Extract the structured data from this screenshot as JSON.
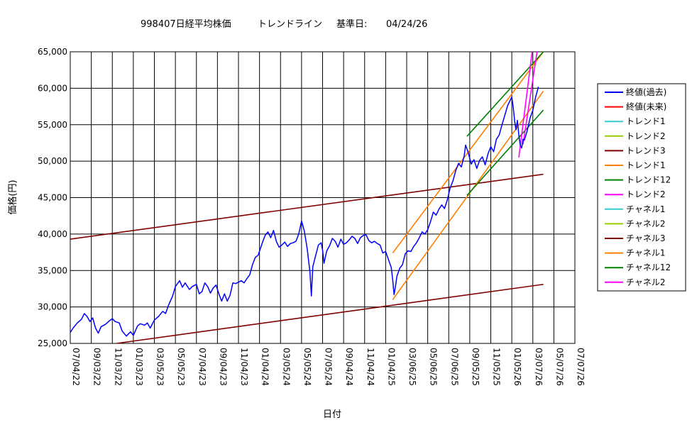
{
  "chart_data": {
    "type": "line",
    "title": "998407日経平均株価",
    "title_mid": "トレンドライン",
    "title_base_label": "基準日:",
    "title_base_date": "04/24/26",
    "xlabel": "日付",
    "ylabel": "価格(円)",
    "ylim": [
      25000,
      65000
    ],
    "y_ticks": [
      25000,
      30000,
      35000,
      40000,
      45000,
      50000,
      55000,
      60000,
      65000
    ],
    "y_tick_labels": [
      "25,000",
      "30,000",
      "35,000",
      "40,000",
      "45,000",
      "50,000",
      "55,000",
      "60,000",
      "65,000"
    ],
    "x_tick_labels": [
      "07/04/22",
      "09/03/22",
      "11/03/22",
      "01/03/23",
      "03/05/23",
      "05/05/23",
      "07/04/23",
      "09/04/23",
      "11/04/23",
      "01/04/24",
      "03/05/24",
      "05/05/24",
      "07/05/24",
      "09/04/24",
      "11/04/24",
      "01/04/25",
      "03/06/25",
      "05/06/25",
      "07/06/25",
      "09/05/25",
      "11/05/25",
      "01/05/26",
      "03/07/26",
      "05/07/26",
      "07/07/26"
    ],
    "grid": true,
    "legend_position": "right",
    "legend": [
      {
        "label": "終値(過去)",
        "color": "#0000ff"
      },
      {
        "label": "終値(未来)",
        "color": "#ff0000"
      },
      {
        "label": "トレンド1",
        "color": "#33cccc"
      },
      {
        "label": "トレンド2",
        "color": "#99cc00"
      },
      {
        "label": "トレンド3",
        "color": "#800000"
      },
      {
        "label": "トレンド1",
        "color": "#ff8000"
      },
      {
        "label": "トレンド12",
        "color": "#008000"
      },
      {
        "label": "トレンド2",
        "color": "#ff00ff"
      },
      {
        "label": "チャネル1",
        "color": "#33cccc"
      },
      {
        "label": "チャネル2",
        "color": "#99cc00"
      },
      {
        "label": "チャネル3",
        "color": "#800000"
      },
      {
        "label": "チャネル1",
        "color": "#ff8000"
      },
      {
        "label": "チャネル12",
        "color": "#008000"
      },
      {
        "label": "チャネル2",
        "color": "#ff00ff"
      }
    ],
    "price_series": {
      "name": "終値(過去)",
      "color": "#0000ff",
      "points": [
        [
          0,
          26500
        ],
        [
          0.2,
          27100
        ],
        [
          0.5,
          27800
        ],
        [
          0.8,
          28300
        ],
        [
          1.0,
          29100
        ],
        [
          1.2,
          28700
        ],
        [
          1.4,
          28000
        ],
        [
          1.6,
          28500
        ],
        [
          1.8,
          27100
        ],
        [
          2.0,
          26400
        ],
        [
          2.2,
          27300
        ],
        [
          2.5,
          27600
        ],
        [
          2.8,
          28100
        ],
        [
          3.0,
          28400
        ],
        [
          3.2,
          28000
        ],
        [
          3.5,
          27800
        ],
        [
          3.7,
          26700
        ],
        [
          4.0,
          26000
        ],
        [
          4.3,
          26600
        ],
        [
          4.5,
          26100
        ],
        [
          4.8,
          27400
        ],
        [
          5.0,
          27700
        ],
        [
          5.3,
          27500
        ],
        [
          5.5,
          27800
        ],
        [
          5.7,
          27100
        ],
        [
          6.0,
          28200
        ],
        [
          6.3,
          28700
        ],
        [
          6.6,
          29400
        ],
        [
          6.8,
          29100
        ],
        [
          7.0,
          30200
        ],
        [
          7.3,
          31500
        ],
        [
          7.5,
          32800
        ],
        [
          7.8,
          33600
        ],
        [
          8.0,
          32700
        ],
        [
          8.2,
          33300
        ],
        [
          8.5,
          32400
        ],
        [
          8.7,
          32800
        ],
        [
          9.0,
          33100
        ],
        [
          9.2,
          31800
        ],
        [
          9.4,
          32100
        ],
        [
          9.6,
          33300
        ],
        [
          9.8,
          32800
        ],
        [
          10.0,
          31900
        ],
        [
          10.2,
          32600
        ],
        [
          10.4,
          33000
        ],
        [
          10.6,
          31800
        ],
        [
          10.8,
          30800
        ],
        [
          11.0,
          31800
        ],
        [
          11.2,
          30800
        ],
        [
          11.4,
          31600
        ],
        [
          11.6,
          33300
        ],
        [
          11.8,
          33200
        ],
        [
          12.0,
          33400
        ],
        [
          12.2,
          33600
        ],
        [
          12.4,
          33300
        ],
        [
          12.6,
          33900
        ],
        [
          12.8,
          34400
        ],
        [
          13.0,
          35800
        ],
        [
          13.2,
          36800
        ],
        [
          13.4,
          37100
        ],
        [
          13.7,
          38800
        ],
        [
          13.9,
          39800
        ],
        [
          14.1,
          40300
        ],
        [
          14.3,
          39500
        ],
        [
          14.5,
          40500
        ],
        [
          14.7,
          39000
        ],
        [
          14.9,
          38200
        ],
        [
          15.1,
          38500
        ],
        [
          15.3,
          38900
        ],
        [
          15.5,
          38300
        ],
        [
          15.7,
          38700
        ],
        [
          15.9,
          38800
        ],
        [
          16.1,
          39000
        ],
        [
          16.3,
          40000
        ],
        [
          16.5,
          41800
        ],
        [
          16.7,
          40400
        ],
        [
          16.9,
          38000
        ],
        [
          17.1,
          34800
        ],
        [
          17.2,
          31500
        ],
        [
          17.3,
          35500
        ],
        [
          17.5,
          37000
        ],
        [
          17.7,
          38500
        ],
        [
          17.9,
          38800
        ],
        [
          18.0,
          37800
        ],
        [
          18.1,
          36000
        ],
        [
          18.3,
          37700
        ],
        [
          18.5,
          38400
        ],
        [
          18.7,
          39400
        ],
        [
          18.9,
          39000
        ],
        [
          19.1,
          38200
        ],
        [
          19.3,
          39300
        ],
        [
          19.5,
          38600
        ],
        [
          19.7,
          38800
        ],
        [
          19.9,
          39200
        ],
        [
          20.1,
          39700
        ],
        [
          20.3,
          39400
        ],
        [
          20.5,
          38700
        ],
        [
          20.7,
          39500
        ],
        [
          20.9,
          39800
        ],
        [
          21.1,
          39900
        ],
        [
          21.3,
          39100
        ],
        [
          21.5,
          38800
        ],
        [
          21.7,
          39000
        ],
        [
          21.9,
          38700
        ],
        [
          22.1,
          38500
        ],
        [
          22.3,
          37400
        ],
        [
          22.5,
          37600
        ],
        [
          22.7,
          36500
        ],
        [
          22.9,
          35400
        ],
        [
          23.0,
          33700
        ],
        [
          23.1,
          31700
        ],
        [
          23.2,
          32800
        ],
        [
          23.3,
          34200
        ],
        [
          23.5,
          35300
        ],
        [
          23.7,
          35800
        ],
        [
          23.9,
          37300
        ],
        [
          24.1,
          37700
        ],
        [
          24.3,
          37600
        ],
        [
          24.5,
          38300
        ],
        [
          24.7,
          38800
        ],
        [
          24.9,
          39500
        ],
        [
          25.1,
          40300
        ],
        [
          25.3,
          40000
        ],
        [
          25.5,
          40600
        ],
        [
          25.7,
          41700
        ],
        [
          25.9,
          43000
        ],
        [
          26.1,
          42600
        ],
        [
          26.3,
          43400
        ],
        [
          26.5,
          44000
        ],
        [
          26.7,
          43500
        ],
        [
          26.9,
          44700
        ],
        [
          27.1,
          46300
        ],
        [
          27.3,
          47300
        ],
        [
          27.5,
          48700
        ],
        [
          27.7,
          49700
        ],
        [
          27.9,
          49200
        ],
        [
          28.1,
          50700
        ],
        [
          28.2,
          52200
        ],
        [
          28.4,
          51100
        ],
        [
          28.6,
          49600
        ],
        [
          28.8,
          50200
        ],
        [
          29.0,
          49000
        ],
        [
          29.2,
          50100
        ],
        [
          29.4,
          50600
        ],
        [
          29.6,
          49500
        ],
        [
          29.8,
          51000
        ],
        [
          30.0,
          52000
        ],
        [
          30.2,
          51300
        ],
        [
          30.4,
          53000
        ],
        [
          30.6,
          53600
        ],
        [
          30.8,
          55000
        ],
        [
          31.0,
          56300
        ],
        [
          31.2,
          57600
        ],
        [
          31.4,
          58400
        ],
        [
          31.5,
          58800
        ],
        [
          31.6,
          57400
        ],
        [
          31.7,
          55500
        ],
        [
          31.8,
          54300
        ],
        [
          31.9,
          55600
        ],
        [
          32.0,
          53600
        ],
        [
          32.1,
          52200
        ],
        [
          32.2,
          51800
        ],
        [
          32.3,
          53000
        ],
        [
          32.4,
          52900
        ],
        [
          32.6,
          54200
        ],
        [
          32.8,
          55900
        ],
        [
          33.0,
          57000
        ],
        [
          33.2,
          58800
        ],
        [
          33.4,
          60200
        ]
      ]
    },
    "trend_lines": [
      {
        "name": "トレンド3",
        "color": "#800000",
        "x": [
          0,
          33.75
        ],
        "y": [
          39300,
          48200
        ]
      },
      {
        "name": "チャネル3",
        "color": "#800000",
        "x": [
          3.3,
          33.75
        ],
        "y": [
          25000,
          33100
        ]
      },
      {
        "name": "トレンド1",
        "color": "#ff8000",
        "x": [
          23.0,
          33.75
        ],
        "y": [
          37400,
          65000
        ]
      },
      {
        "name": "チャネル1",
        "color": "#ff8000",
        "x": [
          23.0,
          33.75
        ],
        "y": [
          31000,
          59600
        ]
      },
      {
        "name": "トレンド12",
        "color": "#008000",
        "x": [
          28.3,
          33.75
        ],
        "y": [
          53400,
          65000
        ]
      },
      {
        "name": "チャネル12",
        "color": "#008000",
        "x": [
          28.3,
          33.75
        ],
        "y": [
          45300,
          57000
        ]
      },
      {
        "name": "トレンド2",
        "color": "#ff00ff",
        "x": [
          32.3,
          33.3
        ],
        "y": [
          52300,
          65000
        ]
      },
      {
        "name": "チャネル2",
        "color": "#ff00ff",
        "x": [
          32.0,
          32.95
        ],
        "y": [
          50500,
          65000
        ]
      }
    ]
  }
}
